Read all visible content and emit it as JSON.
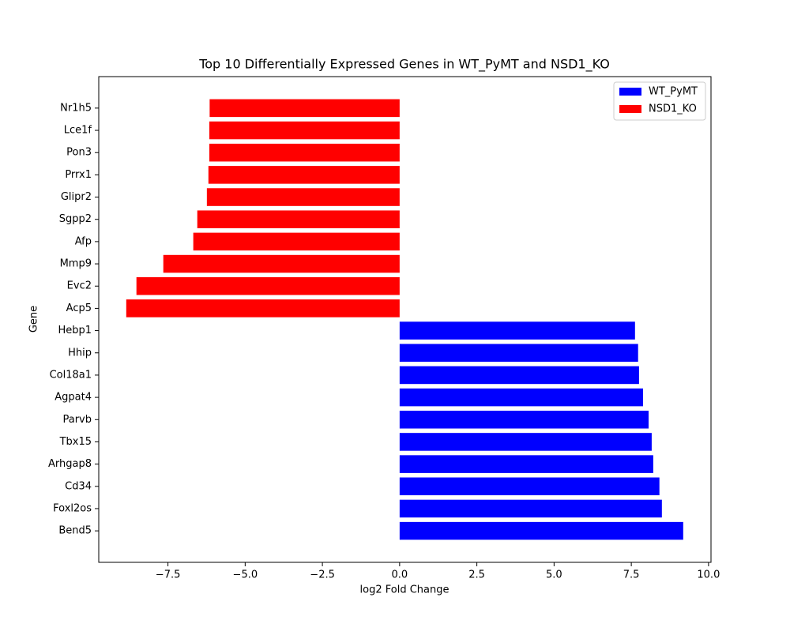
{
  "chart_data": {
    "type": "barh",
    "title": "Top 10 Differentially Expressed Genes in WT_PyMT and NSD1_KO",
    "xlabel": "log2 Fold Change",
    "ylabel": "Gene",
    "categories": [
      "Bend5",
      "Foxl2os",
      "Cd34",
      "Arhgap8",
      "Tbx15",
      "Parvb",
      "Agpat4",
      "Col18a1",
      "Hhip",
      "Hebp1",
      "Acp5",
      "Evc2",
      "Mmp9",
      "Afp",
      "Sgpp2",
      "Glipr2",
      "Prrx1",
      "Pon3",
      "Lce1f",
      "Nr1h5"
    ],
    "series": [
      {
        "name": "WT_PyMT",
        "color": "#0000ff",
        "values": [
          9.18,
          8.49,
          8.41,
          8.21,
          8.16,
          8.06,
          7.88,
          7.75,
          7.72,
          7.62,
          null,
          null,
          null,
          null,
          null,
          null,
          null,
          null,
          null,
          null
        ]
      },
      {
        "name": "NSD1_KO",
        "color": "#ff0000",
        "values": [
          null,
          null,
          null,
          null,
          null,
          null,
          null,
          null,
          null,
          null,
          -8.85,
          -8.52,
          -7.65,
          -6.68,
          -6.55,
          -6.24,
          -6.19,
          -6.16,
          -6.16,
          -6.15
        ]
      }
    ],
    "xlim": [
      -9.74,
      10.08
    ],
    "xticks": [
      {
        "value": -7.5,
        "label": "−7.5"
      },
      {
        "value": -5,
        "label": "−5.0"
      },
      {
        "value": -2.5,
        "label": "−2.5"
      },
      {
        "value": 0,
        "label": "0.0"
      },
      2.5,
      {
        "value": 5,
        "label": "5.0"
      },
      7.5,
      {
        "value": 10,
        "label": "10.0"
      }
    ],
    "legend": "upper right",
    "grid": false
  }
}
